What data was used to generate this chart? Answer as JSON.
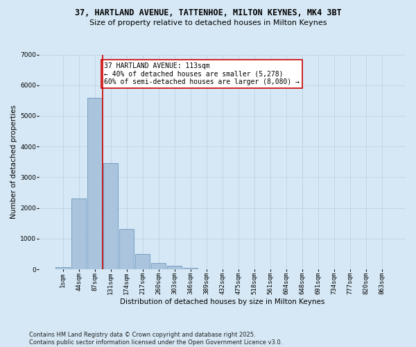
{
  "title_line1": "37, HARTLAND AVENUE, TATTENHOE, MILTON KEYNES, MK4 3BT",
  "title_line2": "Size of property relative to detached houses in Milton Keynes",
  "xlabel": "Distribution of detached houses by size in Milton Keynes",
  "ylabel": "Number of detached properties",
  "categories": [
    "1sqm",
    "44sqm",
    "87sqm",
    "131sqm",
    "174sqm",
    "217sqm",
    "260sqm",
    "303sqm",
    "346sqm",
    "389sqm",
    "432sqm",
    "475sqm",
    "518sqm",
    "561sqm",
    "604sqm",
    "648sqm",
    "691sqm",
    "734sqm",
    "777sqm",
    "820sqm",
    "863sqm"
  ],
  "values": [
    75,
    2300,
    5580,
    3450,
    1320,
    490,
    195,
    110,
    55,
    0,
    0,
    0,
    0,
    0,
    0,
    0,
    0,
    0,
    0,
    0,
    0
  ],
  "bar_color": "#aac4dd",
  "bar_edge_color": "#5a8ab5",
  "background_color": "#d6e8f5",
  "vline_x": 2.48,
  "vline_color": "#cc0000",
  "annotation_text": "37 HARTLAND AVENUE: 113sqm\n← 40% of detached houses are smaller (5,278)\n60% of semi-detached houses are larger (8,080) →",
  "annotation_box_color": "#ffffff",
  "annotation_box_edge": "#cc0000",
  "ylim": [
    0,
    7000
  ],
  "yticks": [
    0,
    1000,
    2000,
    3000,
    4000,
    5000,
    6000,
    7000
  ],
  "footer_line1": "Contains HM Land Registry data © Crown copyright and database right 2025.",
  "footer_line2": "Contains public sector information licensed under the Open Government Licence v3.0.",
  "grid_color": "#b8cfe0",
  "title_fontsize": 8.5,
  "subtitle_fontsize": 8,
  "axis_label_fontsize": 7.5,
  "tick_fontsize": 6.5,
  "annotation_fontsize": 7,
  "footer_fontsize": 6
}
